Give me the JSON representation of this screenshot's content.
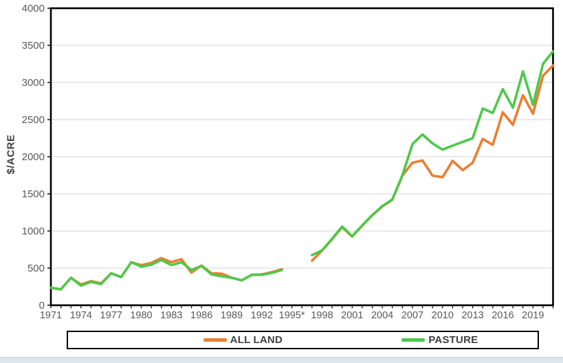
{
  "window": {
    "background": "#ffffff",
    "bottom_strip_color": "#dde5ef"
  },
  "chart_data": {
    "type": "line",
    "title": "",
    "xlabel": "",
    "ylabel": "$/ACRE",
    "ylim": [
      0,
      4000
    ],
    "ytick_interval": 500,
    "yticks": [
      0,
      500,
      1000,
      1500,
      2000,
      2500,
      3000,
      3500,
      4000
    ],
    "grid": "horizontal-only",
    "legend_position": "bottom-box",
    "gap_years": [
      1995,
      1996
    ],
    "footnote_marker": "1995*",
    "x": [
      1971,
      1972,
      1973,
      1974,
      1975,
      1976,
      1977,
      1978,
      1979,
      1980,
      1981,
      1982,
      1983,
      1984,
      1985,
      1986,
      1987,
      1988,
      1989,
      1990,
      1991,
      1992,
      1993,
      1994,
      1995,
      1996,
      1997,
      1998,
      1999,
      2000,
      2001,
      2002,
      2003,
      2004,
      2005,
      2006,
      2007,
      2008,
      2009,
      2010,
      2011,
      2012,
      2013,
      2014,
      2015,
      2016,
      2017,
      2018,
      2019,
      2020,
      2021
    ],
    "xticks": [
      {
        "year": 1971,
        "label": "1971"
      },
      {
        "year": 1974,
        "label": "1974"
      },
      {
        "year": 1977,
        "label": "1977"
      },
      {
        "year": 1980,
        "label": "1980"
      },
      {
        "year": 1983,
        "label": "1983"
      },
      {
        "year": 1986,
        "label": "1986"
      },
      {
        "year": 1989,
        "label": "1989"
      },
      {
        "year": 1992,
        "label": "1992"
      },
      {
        "year": 1995,
        "label": "1995*"
      },
      {
        "year": 1998,
        "label": "1998"
      },
      {
        "year": 2001,
        "label": "2001"
      },
      {
        "year": 2004,
        "label": "2004"
      },
      {
        "year": 2007,
        "label": "2007"
      },
      {
        "year": 2010,
        "label": "2010"
      },
      {
        "year": 2013,
        "label": "2013"
      },
      {
        "year": 2016,
        "label": "2016"
      },
      {
        "year": 2019,
        "label": "2019"
      }
    ],
    "series": [
      {
        "name": "ALL LAND",
        "color": "#ED7D31",
        "values": [
          235,
          215,
          370,
          280,
          325,
          295,
          430,
          380,
          580,
          540,
          570,
          635,
          580,
          620,
          440,
          535,
          430,
          425,
          370,
          335,
          410,
          415,
          445,
          485,
          null,
          null,
          600,
          735,
          890,
          1050,
          925,
          1070,
          1210,
          1330,
          1420,
          1745,
          1920,
          1950,
          1745,
          1725,
          1945,
          1820,
          1920,
          2240,
          2160,
          2600,
          2430,
          2830,
          2580,
          3090,
          3230
        ]
      },
      {
        "name": "PASTURE",
        "color": "#4DC94A",
        "values": [
          235,
          215,
          370,
          265,
          315,
          285,
          430,
          380,
          580,
          520,
          545,
          610,
          540,
          580,
          475,
          530,
          415,
          390,
          370,
          335,
          410,
          410,
          435,
          475,
          null,
          null,
          675,
          740,
          895,
          1060,
          930,
          1075,
          1215,
          1335,
          1425,
          1750,
          2170,
          2300,
          2180,
          2095,
          2150,
          2200,
          2250,
          2650,
          2590,
          2910,
          2660,
          3150,
          2700,
          3250,
          3420
        ]
      }
    ],
    "style": {
      "axis_color": "#000000",
      "grid_color": "#d6d6d6",
      "tick_label_color": "#595959",
      "axis_title_color": "#3f3f3f",
      "line_width": 3.6
    }
  },
  "legend": {
    "items": [
      {
        "label": "ALL LAND",
        "color": "#ED7D31"
      },
      {
        "label": "PASTURE",
        "color": "#4DC94A"
      }
    ]
  }
}
